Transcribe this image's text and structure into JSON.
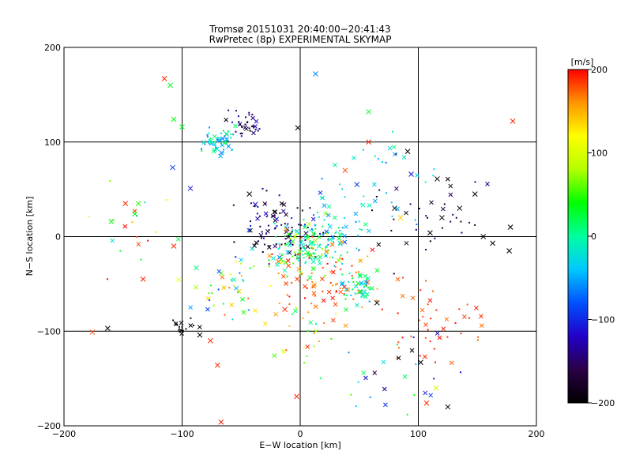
{
  "chart_data": {
    "type": "scatter",
    "title": "Tromsø 20151031 20:40:00−20:41:43",
    "subtitle": "RwPretec (8p) EXPERIMENTAL SKYMAP",
    "xlabel": "E−W location [km]",
    "ylabel": "N−S location [km]",
    "xlim": [
      -200,
      200
    ],
    "ylim": [
      -200,
      200
    ],
    "xticks": [
      -200,
      -100,
      0,
      100,
      200
    ],
    "yticks": [
      -200,
      -100,
      0,
      100,
      200
    ],
    "grid": true,
    "colorbar": {
      "label": "[m/s]",
      "range": [
        -200,
        200
      ],
      "ticks": [
        200,
        100,
        0,
        -100,
        -200
      ],
      "colormap": [
        "#000000",
        "#2a0046",
        "#2200c8",
        "#0050ff",
        "#00c8ff",
        "#00ffa0",
        "#00ff00",
        "#b4ff00",
        "#ffff00",
        "#ff9600",
        "#ff0000"
      ]
    },
    "clusters": [
      {
        "x": -68,
        "y": 100,
        "n": 60,
        "spread": 7,
        "vmin": -70,
        "vmax": 30
      },
      {
        "x": -45,
        "y": 118,
        "n": 35,
        "spread": 8,
        "vmin": -200,
        "vmax": -110
      },
      {
        "x": -20,
        "y": 10,
        "n": 90,
        "spread": 16,
        "vmin": -200,
        "vmax": -90
      },
      {
        "x": 5,
        "y": -12,
        "n": 120,
        "spread": 14,
        "vmin": -40,
        "vmax": 90
      },
      {
        "x": 30,
        "y": 5,
        "n": 60,
        "spread": 16,
        "vmin": -90,
        "vmax": 40
      },
      {
        "x": 20,
        "y": -45,
        "n": 90,
        "spread": 20,
        "vmin": 150,
        "vmax": 200
      },
      {
        "x": 48,
        "y": -55,
        "n": 45,
        "spread": 8,
        "vmin": -60,
        "vmax": 40
      },
      {
        "x": -60,
        "y": -55,
        "n": 45,
        "spread": 16,
        "vmin": -110,
        "vmax": 200
      },
      {
        "x": 115,
        "y": -90,
        "n": 45,
        "spread": 22,
        "vmin": 170,
        "vmax": 200
      },
      {
        "x": -98,
        "y": -96,
        "n": 18,
        "spread": 5,
        "vmin": -200,
        "vmax": -180
      },
      {
        "x": 110,
        "y": 20,
        "n": 35,
        "spread": 28,
        "vmin": -200,
        "vmax": -140
      },
      {
        "x": 70,
        "y": 55,
        "n": 35,
        "spread": 26,
        "vmin": -70,
        "vmax": 10
      },
      {
        "x": 0,
        "y": -95,
        "n": 25,
        "spread": 22,
        "vmin": -20,
        "vmax": 200
      },
      {
        "x": 80,
        "y": -150,
        "n": 25,
        "spread": 28,
        "vmin": -200,
        "vmax": 60
      },
      {
        "x": -140,
        "y": 10,
        "n": 18,
        "spread": 25,
        "vmin": -80,
        "vmax": 200
      }
    ],
    "crosses": [
      {
        "x": -176,
        "y": -101,
        "v": 180
      },
      {
        "x": -163,
        "y": -97,
        "v": -200
      },
      {
        "x": -160,
        "y": 16,
        "v": 40
      },
      {
        "x": -148,
        "y": 35,
        "v": 190
      },
      {
        "x": -140,
        "y": 24,
        "v": 40
      },
      {
        "x": -137,
        "y": 35,
        "v": 50
      },
      {
        "x": -133,
        "y": -45,
        "v": 190
      },
      {
        "x": -115,
        "y": 167,
        "v": 190
      },
      {
        "x": -110,
        "y": 160,
        "v": 30
      },
      {
        "x": -107,
        "y": 124,
        "v": 40
      },
      {
        "x": -100,
        "y": 116,
        "v": 30
      },
      {
        "x": -108,
        "y": 73,
        "v": -90
      },
      {
        "x": -107,
        "y": -10,
        "v": 190
      },
      {
        "x": -93,
        "y": 51,
        "v": -110
      },
      {
        "x": -88,
        "y": -33,
        "v": 10
      },
      {
        "x": -85,
        "y": -104,
        "v": -200
      },
      {
        "x": -76,
        "y": -110,
        "v": 190
      },
      {
        "x": -70,
        "y": -136,
        "v": 190
      },
      {
        "x": -67,
        "y": -196,
        "v": 190
      },
      {
        "x": -43,
        "y": 45,
        "v": -200
      },
      {
        "x": -38,
        "y": 34,
        "v": -120
      },
      {
        "x": -13,
        "y": -77,
        "v": 190
      },
      {
        "x": -3,
        "y": -169,
        "v": 190
      },
      {
        "x": -2,
        "y": 115,
        "v": -200
      },
      {
        "x": 13,
        "y": 172,
        "v": -60
      },
      {
        "x": 38,
        "y": 70,
        "v": 180
      },
      {
        "x": 48,
        "y": 55,
        "v": -90
      },
      {
        "x": 58,
        "y": 132,
        "v": 30
      },
      {
        "x": 58,
        "y": 100,
        "v": 190
      },
      {
        "x": 65,
        "y": -70,
        "v": -200
      },
      {
        "x": 80,
        "y": 30,
        "v": -200
      },
      {
        "x": 85,
        "y": 20,
        "v": 140
      },
      {
        "x": 91,
        "y": 90,
        "v": -200
      },
      {
        "x": 94,
        "y": 66,
        "v": -110
      },
      {
        "x": 102,
        "y": -133,
        "v": -200
      },
      {
        "x": 107,
        "y": -176,
        "v": 190
      },
      {
        "x": 110,
        "y": 4,
        "v": -200
      },
      {
        "x": 115,
        "y": -160,
        "v": 100
      },
      {
        "x": 116,
        "y": 61,
        "v": -200
      },
      {
        "x": 120,
        "y": 20,
        "v": -200
      },
      {
        "x": 125,
        "y": -180,
        "v": -200
      },
      {
        "x": 135,
        "y": 30,
        "v": -200
      },
      {
        "x": 148,
        "y": 45,
        "v": -200
      },
      {
        "x": 155,
        "y": 0,
        "v": -200
      },
      {
        "x": 163,
        "y": -7,
        "v": -200
      },
      {
        "x": 178,
        "y": 10,
        "v": -200
      },
      {
        "x": 180,
        "y": 122,
        "v": 190
      },
      {
        "x": 177,
        "y": -15,
        "v": -200
      }
    ]
  }
}
